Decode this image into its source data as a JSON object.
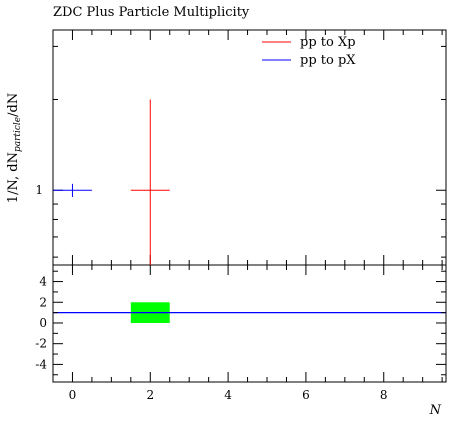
{
  "chart_data": [
    {
      "type": "errorbar",
      "title": "ZDC Plus Particle Multiplicity",
      "ylabel": [
        "1/N, dN",
        "particle",
        "/dN"
      ],
      "xlim": [
        -0.5,
        9.6
      ],
      "ylim": [
        0.565,
        3.4
      ],
      "log_y": true,
      "yticks": [
        1
      ],
      "yminor": [
        0.6,
        0.7,
        0.8,
        0.9,
        2,
        3
      ],
      "xticks": [
        0,
        2,
        4,
        6,
        8
      ],
      "xminor": [
        -0.5,
        0.5,
        1,
        1.5,
        2.5,
        3,
        3.5,
        4.5,
        5,
        5.5,
        6.5,
        7,
        7.5,
        8.5,
        9,
        9.5
      ],
      "legend": "top-right",
      "series": [
        {
          "name": "pp to Xp",
          "color": "#ff0000",
          "x": [
            2
          ],
          "values": [
            1
          ],
          "xerr": [
            0.5
          ],
          "yerr": [
            1
          ]
        },
        {
          "name": "pp to pX",
          "color": "#0000ff",
          "x": [
            0
          ],
          "values": [
            1
          ],
          "xerr": [
            0.5
          ],
          "yerr": [
            0.05
          ]
        }
      ]
    },
    {
      "type": "ratio",
      "xlabel": "N",
      "xlim": [
        -0.5,
        9.6
      ],
      "ylim": [
        -5.7,
        5.6
      ],
      "xticks": [
        0,
        2,
        4,
        6,
        8
      ],
      "xminor": [
        -0.5,
        0.5,
        1,
        1.5,
        2.5,
        3,
        3.5,
        4.5,
        5,
        5.5,
        6.5,
        7,
        7.5,
        8.5,
        9,
        9.5
      ],
      "yticks": [
        -4,
        -2,
        0,
        2,
        4
      ],
      "yminor": [
        -5,
        -3,
        -1,
        1,
        3,
        5
      ],
      "reference": 1,
      "reference_color": "#0000ff",
      "band": {
        "color": "#00ff00",
        "x": [
          2
        ],
        "xerr": [
          0.5
        ],
        "values": [
          1
        ],
        "errors": [
          1
        ]
      }
    }
  ]
}
